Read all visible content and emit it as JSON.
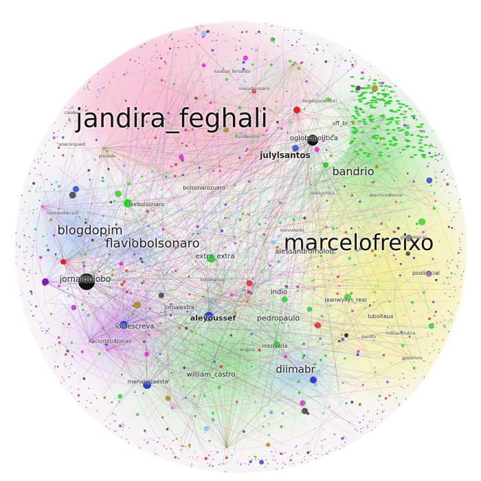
{
  "colors": {
    "pink": "#f7a8c4",
    "yellow": "#f4f0a0",
    "green": "#37c837",
    "bright_green": "#22d022",
    "blue": "#2b3cc8",
    "light_blue": "#8bbcf0",
    "purple": "#9b2fc8",
    "magenta": "#e020c8",
    "red": "#e02020",
    "black": "#111111",
    "olive": "#a08a10",
    "cyan": "#40c0d0"
  },
  "labels": {
    "jandira": "jandira_feghali",
    "marcelo": "marcelofreixo",
    "flavio": "flaviobolsonaro",
    "blogdopim": "blogdopim",
    "bandrio": "bandrio",
    "diimabr": "diimabr",
    "jornaldolobo": "jornaldolobo",
    "julylsantos": "julylsantos",
    "oglobo": "oglobopolitica",
    "uff": "uff_br",
    "aleyoussef": "aleyoussef",
    "extra": "extra_extra",
    "indio": "indio",
    "pedropaulo": "pedropaulo",
    "alessandromolon": "alessandromolon",
    "jeanwyllys": "jeanwyllys_real",
    "luboiteux": "luboiteux",
    "psol": "psoloficial",
    "william": "william_castro",
    "marialuiza": "marialuizaesta",
    "lolaescreva": "lolaescreva",
    "jornalextra": "jornalextra",
    "mcrivella": "mcrivella",
    "jairbolsonaro": "jairbolsonaro",
    "bolsonarozuero": "bolsonarozuero",
    "nostrends": "nostrendsbrasil",
    "ivanvalente": "ivanvalente",
    "bolsonarosp": "bolsonarosp",
    "acelsos": "acelsos",
    "depchico": "depchicoalencar",
    "mdzaerundina": "mdzaerundina",
    "bandtv": "bandtv",
    "haddad": "haddad_fernando",
    "mariadorosario": "mariadorosario",
    "blogdojuca": "blogdojucakfouri",
    "caioba": "caioba",
    "anaconquest": "anaconquest",
    "sacio": "aaciodepapelao",
    "piedade": "piedade",
    "psolcarioca": "psolcarioca",
    "chicoalencar": "chicoalencar",
    "vvilsonline": "vvilsonline",
    "apoiolivre": "apoiolivre"
  }
}
